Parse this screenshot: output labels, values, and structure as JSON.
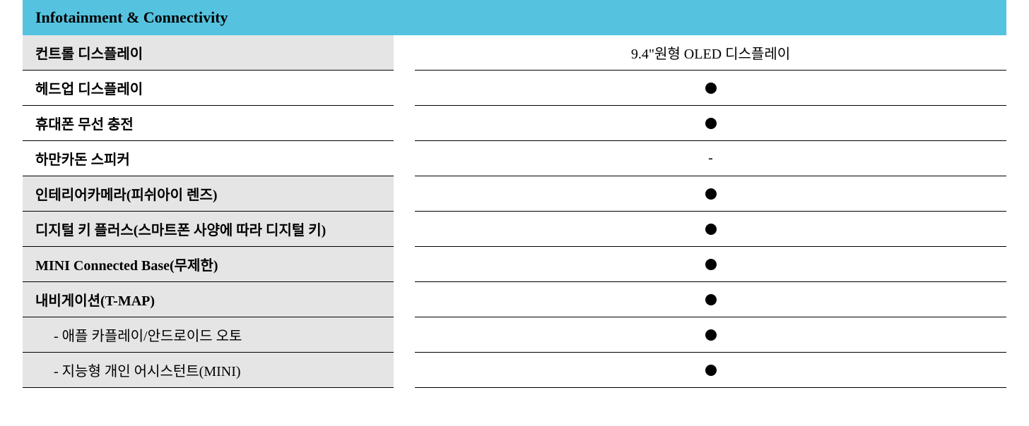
{
  "section": {
    "title": "Infotainment & Connectivity",
    "header_bg": "#55c3e0",
    "shaded_bg": "#e5e5e5",
    "border_color": "#000000",
    "dot_color": "#000000",
    "rows": [
      {
        "label": "컨트롤 디스플레이",
        "value_type": "text",
        "value": "9.4\"원형 OLED 디스플레이",
        "shaded": true,
        "indent": false,
        "bold": true
      },
      {
        "label": "헤드업 디스플레이",
        "value_type": "dot",
        "value": "",
        "shaded": false,
        "indent": false,
        "bold": true
      },
      {
        "label": "휴대폰 무선 충전",
        "value_type": "dot",
        "value": "",
        "shaded": false,
        "indent": false,
        "bold": true
      },
      {
        "label": "하만카돈 스피커",
        "value_type": "text",
        "value": "-",
        "shaded": false,
        "indent": false,
        "bold": true
      },
      {
        "label": "인테리어카메라(피쉬아이 렌즈)",
        "value_type": "dot",
        "value": "",
        "shaded": true,
        "indent": false,
        "bold": true
      },
      {
        "label": "디지털 키 플러스(스마트폰 사양에 따라 디지털 키)",
        "value_type": "dot",
        "value": "",
        "shaded": true,
        "indent": false,
        "bold": true
      },
      {
        "label": "MINI Connected Base(무제한)",
        "value_type": "dot",
        "value": "",
        "shaded": true,
        "indent": false,
        "bold": true
      },
      {
        "label": "내비게이션(T-MAP)",
        "value_type": "dot",
        "value": "",
        "shaded": true,
        "indent": false,
        "bold": true
      },
      {
        "label": "- 애플 카플레이/안드로이드 오토",
        "value_type": "dot",
        "value": "",
        "shaded": true,
        "indent": true,
        "bold": false
      },
      {
        "label": "- 지능형 개인 어시스턴트(MINI)",
        "value_type": "dot",
        "value": "",
        "shaded": true,
        "indent": true,
        "bold": false
      }
    ]
  }
}
